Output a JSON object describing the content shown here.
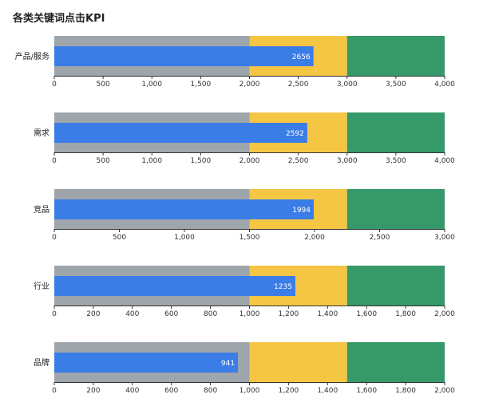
{
  "chart_data": {
    "type": "bar",
    "subtype": "bullet",
    "title": "各类关键词点击KPI",
    "colors": {
      "range_low": "#9ea5ab",
      "range_mid": "#f5c544",
      "range_high": "#36996a",
      "measure": "#3b7de6",
      "axis": "#333333"
    },
    "rows": [
      {
        "label": "产品/服务",
        "value": 2656,
        "ranges": [
          2000,
          3000,
          4000
        ],
        "xlim": [
          0,
          4000
        ],
        "ticks": [
          0,
          500,
          1000,
          1500,
          2000,
          2500,
          3000,
          3500,
          4000
        ],
        "tick_labels": [
          "0",
          "500",
          "1,000",
          "1,500",
          "2,000",
          "2,500",
          "3,000",
          "3,500",
          "4,000"
        ],
        "value_label": "2656"
      },
      {
        "label": "需求",
        "value": 2592,
        "ranges": [
          2000,
          3000,
          4000
        ],
        "xlim": [
          0,
          4000
        ],
        "ticks": [
          0,
          500,
          1000,
          1500,
          2000,
          2500,
          3000,
          3500,
          4000
        ],
        "tick_labels": [
          "0",
          "500",
          "1,000",
          "1,500",
          "2,000",
          "2,500",
          "3,000",
          "3,500",
          "4,000"
        ],
        "value_label": "2592"
      },
      {
        "label": "竞品",
        "value": 1994,
        "ranges": [
          1500,
          2250,
          3000
        ],
        "xlim": [
          0,
          3000
        ],
        "ticks": [
          0,
          500,
          1000,
          1500,
          2000,
          2500,
          3000
        ],
        "tick_labels": [
          "0",
          "500",
          "1,000",
          "1,500",
          "2,000",
          "2,500",
          "3,000"
        ],
        "value_label": "1994"
      },
      {
        "label": "行业",
        "value": 1235,
        "ranges": [
          1000,
          1500,
          2000
        ],
        "xlim": [
          0,
          2000
        ],
        "ticks": [
          0,
          200,
          400,
          600,
          800,
          1000,
          1200,
          1400,
          1600,
          1800,
          2000
        ],
        "tick_labels": [
          "0",
          "200",
          "400",
          "600",
          "800",
          "1,000",
          "1,200",
          "1,400",
          "1,600",
          "1,800",
          "2,000"
        ],
        "value_label": "1235"
      },
      {
        "label": "品牌",
        "value": 941,
        "ranges": [
          1000,
          1500,
          2000
        ],
        "xlim": [
          0,
          2000
        ],
        "ticks": [
          0,
          200,
          400,
          600,
          800,
          1000,
          1200,
          1400,
          1600,
          1800,
          2000
        ],
        "tick_labels": [
          "0",
          "200",
          "400",
          "600",
          "800",
          "1,000",
          "1,200",
          "1,400",
          "1,600",
          "1,800",
          "2,000"
        ],
        "value_label": "941"
      }
    ]
  }
}
